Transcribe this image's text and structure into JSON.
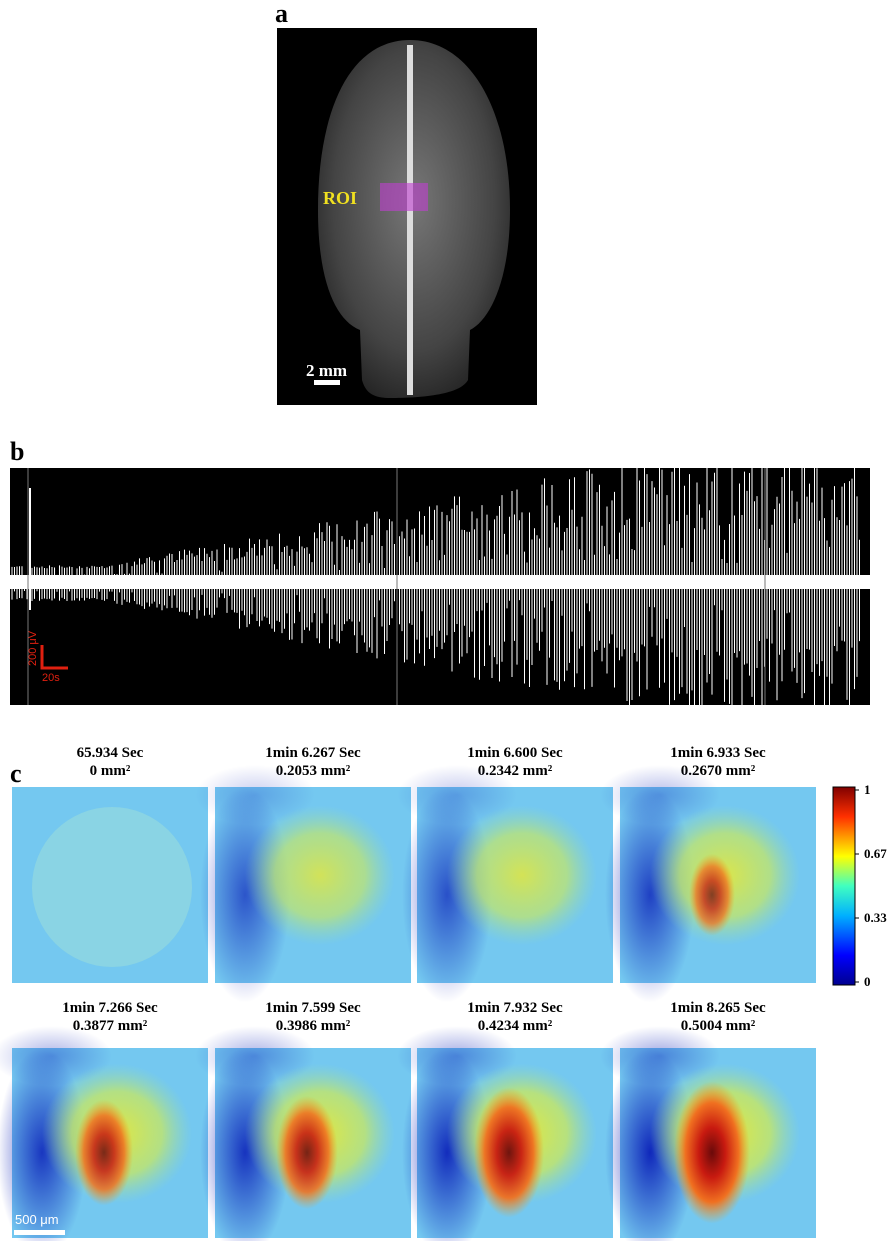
{
  "panel_a": {
    "letter": "a",
    "roi_label": "ROI",
    "scale_bar": "2 mm"
  },
  "panel_b": {
    "letter": "b",
    "scale_y": "200 μV",
    "scale_x": "20s"
  },
  "panel_c": {
    "letter": "c",
    "frames": [
      {
        "time": "65.934 Sec",
        "area": "0 mm²"
      },
      {
        "time": "1min 6.267 Sec",
        "area": "0.2053 mm²"
      },
      {
        "time": "1min 6.600 Sec",
        "area": "0.2342 mm²"
      },
      {
        "time": "1min 6.933 Sec",
        "area": "0.2670 mm²"
      },
      {
        "time": "1min 7.266 Sec",
        "area": "0.3877 mm²"
      },
      {
        "time": "1min 7.599 Sec",
        "area": "0.3986 mm²"
      },
      {
        "time": "1min 7.932 Sec",
        "area": "0.4234 mm²"
      },
      {
        "time": "1min 8.265 Sec",
        "area": "0.5004 mm²"
      }
    ],
    "colorbar_ticks": [
      "1",
      "0.67",
      "0.33",
      "0"
    ],
    "scale_bar": "500 μm"
  }
}
